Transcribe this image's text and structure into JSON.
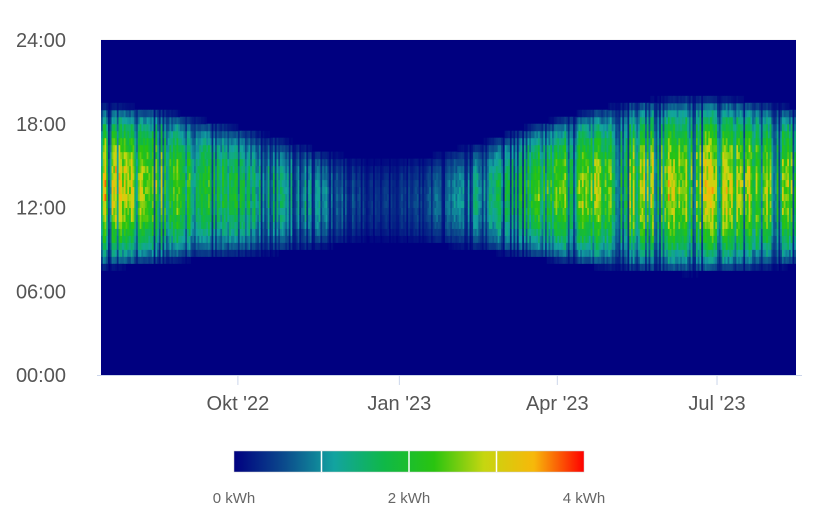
{
  "chart_data": {
    "type": "heatmap",
    "title": "",
    "xlabel": "",
    "ylabel": "",
    "x_range": [
      "2022-07-15",
      "2023-08-15"
    ],
    "x_ticks": [
      {
        "date": "2022-10-01",
        "label": "Okt '22"
      },
      {
        "date": "2023-01-01",
        "label": "Jan '23"
      },
      {
        "date": "2023-04-01",
        "label": "Apr '23"
      },
      {
        "date": "2023-07-01",
        "label": "Jul '23"
      }
    ],
    "y_range": [
      "00:00",
      "24:00"
    ],
    "y_ticks": [
      "00:00",
      "06:00",
      "12:00",
      "18:00",
      "24:00"
    ],
    "grid": true,
    "color_axis": {
      "min": 0,
      "max": 4,
      "unit": "kWh",
      "labels": [
        "0 kWh",
        "2 kWh",
        "4 kWh"
      ],
      "stops": [
        "#000080",
        "#0b4a8c",
        "#12a3a0",
        "#0fb848",
        "#29c410",
        "#c6d610",
        "#f7b80a",
        "#ff0000"
      ]
    },
    "monthly_profile": [
      {
        "month": "2022-07",
        "peak_kwh": 3.1,
        "day_start_hour": 8.0,
        "day_end_hour": 19.0
      },
      {
        "month": "2022-08",
        "peak_kwh": 2.7,
        "day_start_hour": 8.3,
        "day_end_hour": 18.8
      },
      {
        "month": "2022-09",
        "peak_kwh": 2.1,
        "day_start_hour": 8.8,
        "day_end_hour": 17.8
      },
      {
        "month": "2022-10",
        "peak_kwh": 1.7,
        "day_start_hour": 9.0,
        "day_end_hour": 17.0
      },
      {
        "month": "2022-11",
        "peak_kwh": 1.2,
        "day_start_hour": 9.4,
        "day_end_hour": 15.8
      },
      {
        "month": "2022-12",
        "peak_kwh": 0.4,
        "day_start_hour": 10.0,
        "day_end_hour": 15.0
      },
      {
        "month": "2023-01",
        "peak_kwh": 0.6,
        "day_start_hour": 9.8,
        "day_end_hour": 15.3
      },
      {
        "month": "2023-02",
        "peak_kwh": 1.4,
        "day_start_hour": 9.3,
        "day_end_hour": 16.3
      },
      {
        "month": "2023-03",
        "peak_kwh": 2.2,
        "day_start_hour": 8.8,
        "day_end_hour": 17.5
      },
      {
        "month": "2023-04",
        "peak_kwh": 2.6,
        "day_start_hour": 8.2,
        "day_end_hour": 18.5
      },
      {
        "month": "2023-05",
        "peak_kwh": 2.8,
        "day_start_hour": 7.8,
        "day_end_hour": 19.3
      },
      {
        "month": "2023-06",
        "peak_kwh": 3.0,
        "day_start_hour": 7.6,
        "day_end_hour": 19.6
      },
      {
        "month": "2023-07",
        "peak_kwh": 2.9,
        "day_start_hour": 7.8,
        "day_end_hour": 19.4
      },
      {
        "month": "2023-08",
        "peak_kwh": 2.6,
        "day_start_hour": 8.2,
        "day_end_hour": 18.8
      }
    ]
  }
}
